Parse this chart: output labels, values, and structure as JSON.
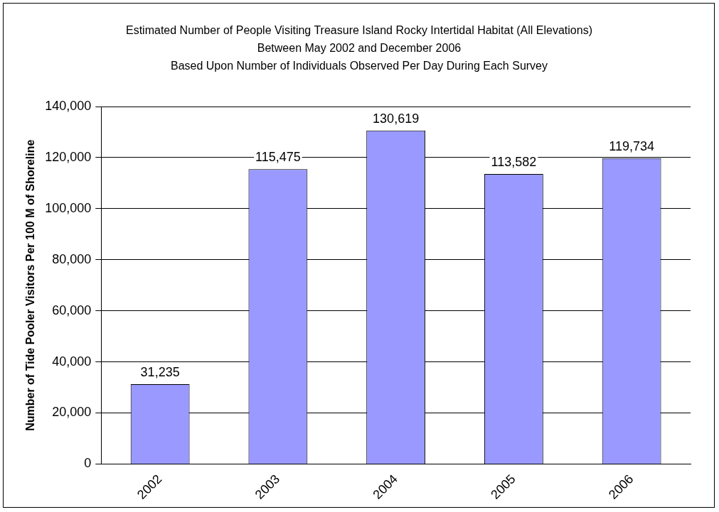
{
  "chart_data": {
    "type": "bar",
    "title": "Estimated Number of People Visiting Treasure Island  Rocky Intertidal Habitat (All Elevations) Between May 2002 and December 2006",
    "subtitle": "Based Upon Number of Individuals Observed Per Day During Each Survey",
    "ylabel": "Number of Tide Pooler Visitors Per 100 M of Shoreline",
    "categories": [
      "2002",
      "2003",
      "2004",
      "2005",
      "2006"
    ],
    "values": [
      31235,
      115475,
      130619,
      113582,
      119734
    ],
    "color": "#9999ff",
    "value_labels": [
      "31,235",
      "115,475",
      "130,619",
      "113,582",
      "119,734"
    ],
    "ylim": [
      0,
      140000
    ],
    "yticks": [
      0,
      {
        "value": 20000,
        "label": "20,000"
      },
      {
        "value": 40000,
        "label": "40,000"
      },
      {
        "value": 60000,
        "label": "60,000"
      },
      {
        "value": 80000,
        "label": "80,000"
      },
      {
        "value": 100000,
        "label": "100,000"
      },
      {
        "value": 120000,
        "label": "120,000"
      },
      {
        "value": 140000,
        "label": "140,000"
      }
    ],
    "grid": "y"
  }
}
